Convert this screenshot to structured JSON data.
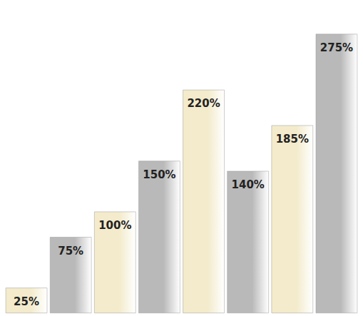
{
  "chart_data": {
    "type": "bar",
    "categories": [
      null,
      null,
      null,
      null,
      null,
      null,
      null,
      null
    ],
    "values": [
      25,
      75,
      100,
      150,
      220,
      140,
      185,
      275
    ],
    "value_labels": [
      "25%",
      "75%",
      "100%",
      "150%",
      "220%",
      "140%",
      "185%",
      "275%"
    ],
    "colors": [
      "#f3ebcb",
      "#b9b9b9",
      "#f3ebcb",
      "#b9b9b9",
      "#f3ebcb",
      "#b9b9b9",
      "#f3ebcb",
      "#b9b9b9"
    ],
    "ylim": [
      0,
      300
    ],
    "data_labels": true,
    "tick_labels": false,
    "grid": false
  }
}
